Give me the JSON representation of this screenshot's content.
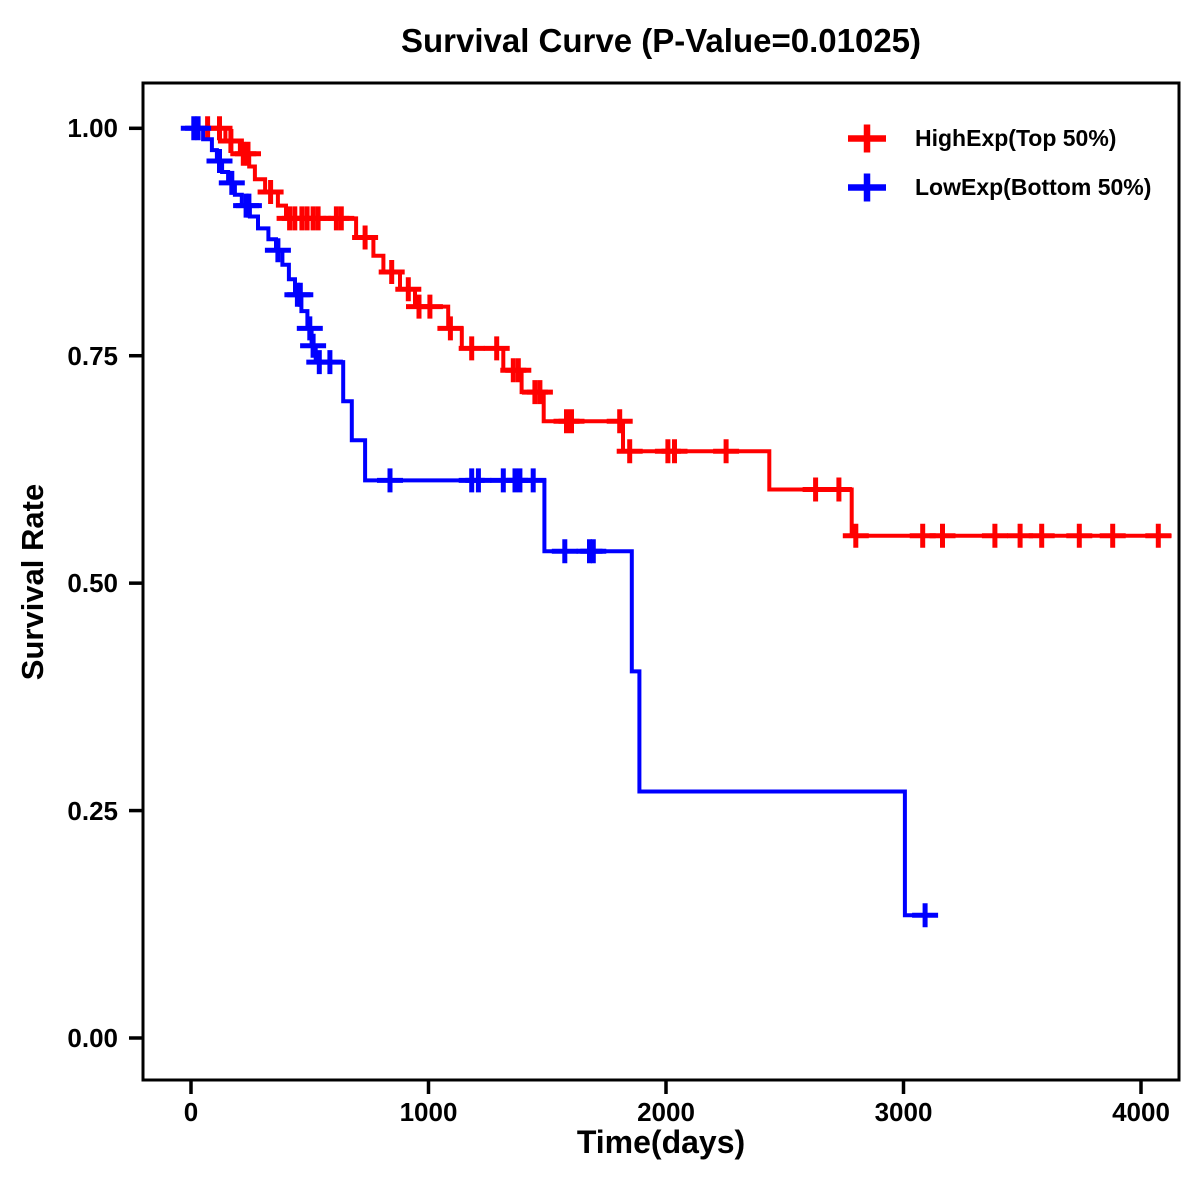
{
  "title": "Survival Curve (P-Value=0.01025)",
  "chart_data": {
    "type": "line",
    "variant": "kaplan_meier_step_curve",
    "title": "Survival Curve (P-Value=0.01025)",
    "xlabel": "Time(days)",
    "ylabel": "Survival Rate",
    "xlim": [
      -200,
      4160
    ],
    "ylim": [
      0,
      1.0
    ],
    "grid": false,
    "legend_position": "top-right-inside",
    "x_ticks": {
      "values": [
        0,
        1000,
        2000,
        3000,
        4000
      ],
      "labels": [
        "0",
        "1000",
        "2000",
        "3000",
        "4000"
      ]
    },
    "y_ticks": {
      "values": [
        0,
        0.25,
        0.5,
        0.75,
        1.0
      ],
      "labels": [
        "0.00",
        "0.25",
        "0.50",
        "0.75",
        "1.00"
      ]
    },
    "legend": [
      {
        "label": "HighExp(Top 50%)",
        "color": "#ff0000"
      },
      {
        "label": "LowExp(Bottom 50%)",
        "color": "#0000ff"
      }
    ],
    "series": [
      {
        "name": "HighExp(Top 50%)",
        "color": "#ff0000",
        "steps": [
          [
            0,
            1.0
          ],
          [
            145,
            0.986
          ],
          [
            206,
            0.972
          ],
          [
            245,
            0.958
          ],
          [
            269,
            0.944
          ],
          [
            312,
            0.93
          ],
          [
            366,
            0.915
          ],
          [
            400,
            0.901
          ],
          [
            695,
            0.88
          ],
          [
            768,
            0.86
          ],
          [
            810,
            0.842
          ],
          [
            880,
            0.823
          ],
          [
            943,
            0.804
          ],
          [
            1083,
            0.78
          ],
          [
            1140,
            0.758
          ],
          [
            1315,
            0.734
          ],
          [
            1392,
            0.71
          ],
          [
            1485,
            0.678
          ],
          [
            1819,
            0.645
          ],
          [
            2435,
            0.603
          ],
          [
            2782,
            0.552
          ]
        ],
        "censor_times": [
          70,
          120,
          168,
          220,
          240,
          335,
          415,
          437,
          467,
          489,
          514,
          535,
          612,
          633,
          733,
          845,
          915,
          960,
          1006,
          1092,
          1182,
          1287,
          1357,
          1378,
          1448,
          1469,
          1581,
          1602,
          1805,
          1847,
          2008,
          2036,
          2253,
          2630,
          2728,
          2799,
          3081,
          3164,
          3385,
          3491,
          3582,
          3740,
          3881,
          4073
        ],
        "end_time": 4129
      },
      {
        "name": "LowExp(Bottom 50%)",
        "color": "#0000ff",
        "steps": [
          [
            0,
            1.0
          ],
          [
            51,
            0.988
          ],
          [
            88,
            0.976
          ],
          [
            109,
            0.964
          ],
          [
            131,
            0.952
          ],
          [
            156,
            0.94
          ],
          [
            185,
            0.927
          ],
          [
            214,
            0.915
          ],
          [
            248,
            0.903
          ],
          [
            282,
            0.89
          ],
          [
            326,
            0.878
          ],
          [
            358,
            0.866
          ],
          [
            385,
            0.85
          ],
          [
            412,
            0.834
          ],
          [
            438,
            0.817
          ],
          [
            465,
            0.799
          ],
          [
            490,
            0.78
          ],
          [
            508,
            0.761
          ],
          [
            525,
            0.743
          ],
          [
            641,
            0.7
          ],
          [
            677,
            0.657
          ],
          [
            733,
            0.613
          ],
          [
            1488,
            0.535
          ],
          [
            1856,
            0.403
          ],
          [
            1888,
            0.271
          ],
          [
            3006,
            0.135
          ]
        ],
        "censor_times": [
          12,
          30,
          120,
          172,
          232,
          244,
          366,
          448,
          460,
          500,
          514,
          540,
          585,
          838,
          1182,
          1210,
          1315,
          1364,
          1385,
          1441,
          1574,
          1678,
          1694,
          3091
        ],
        "end_time": 3140
      }
    ]
  }
}
